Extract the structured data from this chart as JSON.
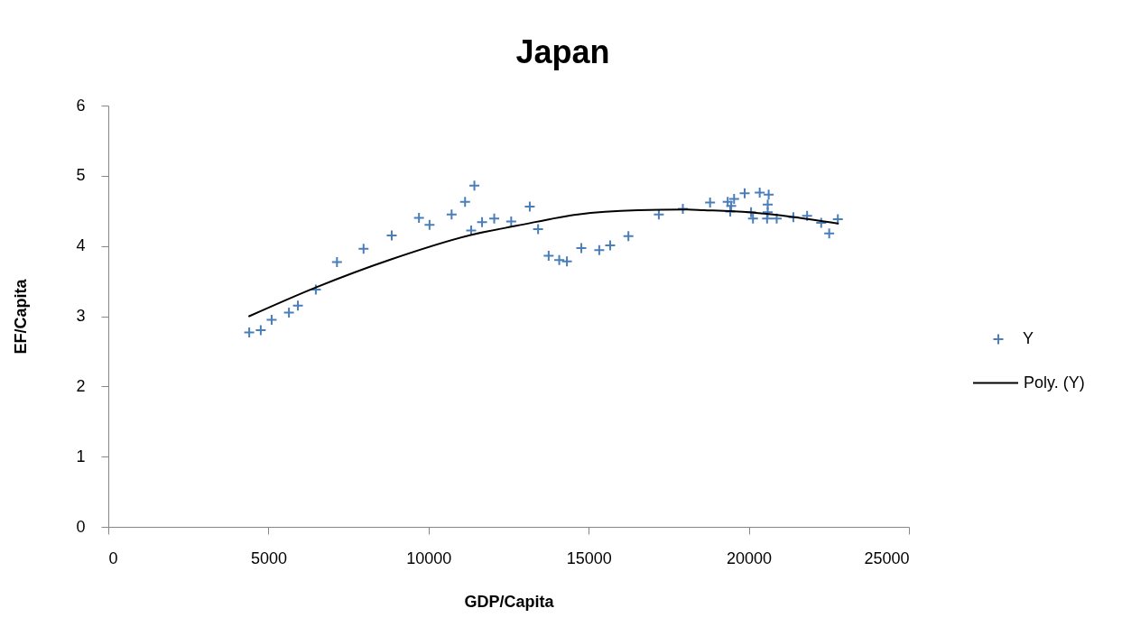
{
  "chart_data": {
    "type": "scatter",
    "title": "Japan",
    "xlabel": "GDP/Capita",
    "ylabel": "EF/Capita",
    "xlim": [
      0,
      25000
    ],
    "xticks": [
      0,
      5000,
      10000,
      15000,
      20000,
      25000
    ],
    "ylim": [
      0,
      6
    ],
    "yticks": [
      0,
      1,
      2,
      3,
      4,
      5,
      6
    ],
    "grid": false,
    "legend": "right",
    "marker": "cross",
    "series": [
      {
        "name": "Y",
        "color": "#4a7ebb",
        "x": [
          4400,
          4760,
          5100,
          5640,
          5920,
          6480,
          7140,
          7970,
          8850,
          9700,
          10030,
          10720,
          11140,
          11330,
          11430,
          11670,
          12050,
          12580,
          13160,
          13420,
          13750,
          14080,
          14320,
          14770,
          15330,
          15670,
          16240,
          17190,
          17940,
          18790,
          19340,
          19450,
          19420,
          19540,
          19870,
          20070,
          20130,
          20340,
          20620,
          20590,
          20590,
          20570,
          20870,
          21390,
          21820,
          22260,
          22510,
          22780
        ],
        "values": [
          2.77,
          2.8,
          2.95,
          3.05,
          3.15,
          3.38,
          3.77,
          3.96,
          4.15,
          4.4,
          4.3,
          4.45,
          4.63,
          4.22,
          4.86,
          4.34,
          4.39,
          4.35,
          4.56,
          4.24,
          3.86,
          3.8,
          3.78,
          3.97,
          3.94,
          4.01,
          4.14,
          4.45,
          4.53,
          4.62,
          4.63,
          4.57,
          4.49,
          4.67,
          4.75,
          4.48,
          4.39,
          4.76,
          4.73,
          4.59,
          4.48,
          4.39,
          4.39,
          4.41,
          4.43,
          4.33,
          4.18,
          4.38
        ]
      },
      {
        "name": "Poly. (Y)",
        "type": "line",
        "color": "#000000",
        "marker": "none",
        "line_style": "solid",
        "x": [
          4400,
          6480,
          8830,
          11350,
          12770,
          14660,
          16540,
          17940,
          18600,
          20010,
          21420,
          22780
        ],
        "values": [
          3.0,
          3.41,
          3.81,
          4.16,
          4.29,
          4.45,
          4.51,
          4.52,
          4.51,
          4.48,
          4.41,
          4.32
        ]
      }
    ]
  }
}
